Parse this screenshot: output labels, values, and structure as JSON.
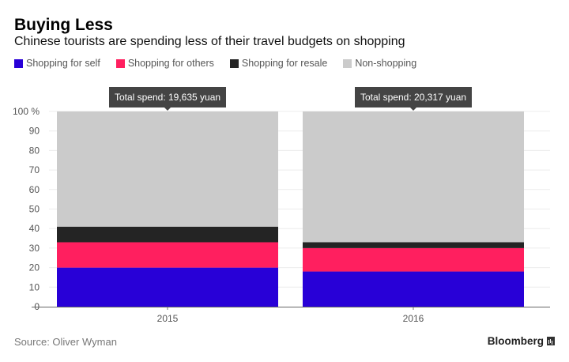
{
  "header": {
    "title": "Buying Less",
    "subtitle": "Chinese tourists are spending less of their travel budgets on shopping"
  },
  "footer": {
    "source": "Source: Oliver Wyman",
    "brand": "Bloomberg",
    "brand_icon": "bloomberg-chart-icon"
  },
  "chart_data": {
    "type": "bar",
    "stacked": true,
    "title": "Buying Less",
    "subtitle": "Chinese tourists are spending less of their travel budgets on shopping",
    "xlabel": "",
    "ylabel": "",
    "categories": [
      "2015",
      "2016"
    ],
    "series": [
      {
        "name": "Shopping for self",
        "color": "#2800d7",
        "values": [
          20,
          18
        ]
      },
      {
        "name": "Shopping for others",
        "color": "#ff1f5f",
        "values": [
          13,
          12
        ]
      },
      {
        "name": "Shopping for resale",
        "color": "#242424",
        "values": [
          8,
          3
        ]
      },
      {
        "name": "Non-shopping",
        "color": "#cbcbcb",
        "values": [
          59,
          67
        ]
      }
    ],
    "ylim": [
      0,
      100
    ],
    "yticks": [
      0,
      10,
      20,
      30,
      40,
      50,
      60,
      70,
      80,
      90,
      100
    ],
    "ytick_labels": [
      "0",
      "10",
      "20",
      "30",
      "40",
      "50",
      "60",
      "70",
      "80",
      "90",
      "100 %"
    ],
    "grid": true,
    "legend": "top-left",
    "annotations": [
      {
        "category": "2015",
        "text": "Total spend: 19,635 yuan"
      },
      {
        "category": "2016",
        "text": "Total spend: 20,317 yuan"
      }
    ]
  }
}
